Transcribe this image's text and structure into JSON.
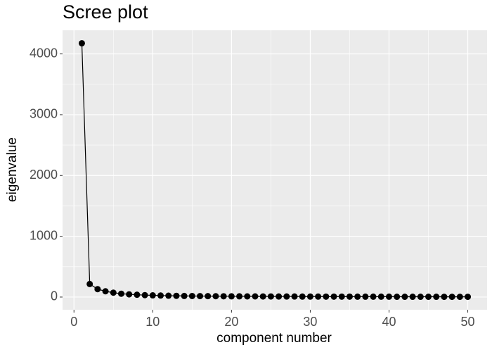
{
  "chart_data": {
    "type": "line",
    "title": "Scree plot",
    "x_label": "component number",
    "y_label": "eigenvalue",
    "x": [
      1,
      2,
      3,
      4,
      5,
      6,
      7,
      8,
      9,
      10,
      11,
      12,
      13,
      14,
      15,
      16,
      17,
      18,
      19,
      20,
      21,
      22,
      23,
      24,
      25,
      26,
      27,
      28,
      29,
      30,
      31,
      32,
      33,
      34,
      35,
      36,
      37,
      38,
      39,
      40,
      41,
      42,
      43,
      44,
      45,
      46,
      47,
      48,
      49,
      50
    ],
    "series": [
      {
        "name": "eigenvalue",
        "color": "#000000",
        "values": [
          4175,
          215,
          130,
          95,
          72,
          55,
          45,
          38,
          32,
          28,
          25,
          22,
          20,
          18,
          17,
          16,
          15,
          14,
          13,
          12,
          12,
          11,
          11,
          10,
          10,
          9,
          9,
          9,
          8,
          8,
          8,
          7,
          7,
          7,
          7,
          6,
          6,
          6,
          6,
          6,
          5,
          5,
          5,
          5,
          5,
          5,
          4,
          4,
          4,
          4
        ]
      }
    ],
    "xlim": [
      -1.45,
      52.45
    ],
    "xticks": [
      0,
      10,
      20,
      30,
      40,
      50
    ],
    "ylim": [
      -209,
      4389
    ],
    "yticks": [
      0,
      1000,
      2000,
      3000,
      4000
    ],
    "grid": true,
    "minor_grid": true
  }
}
